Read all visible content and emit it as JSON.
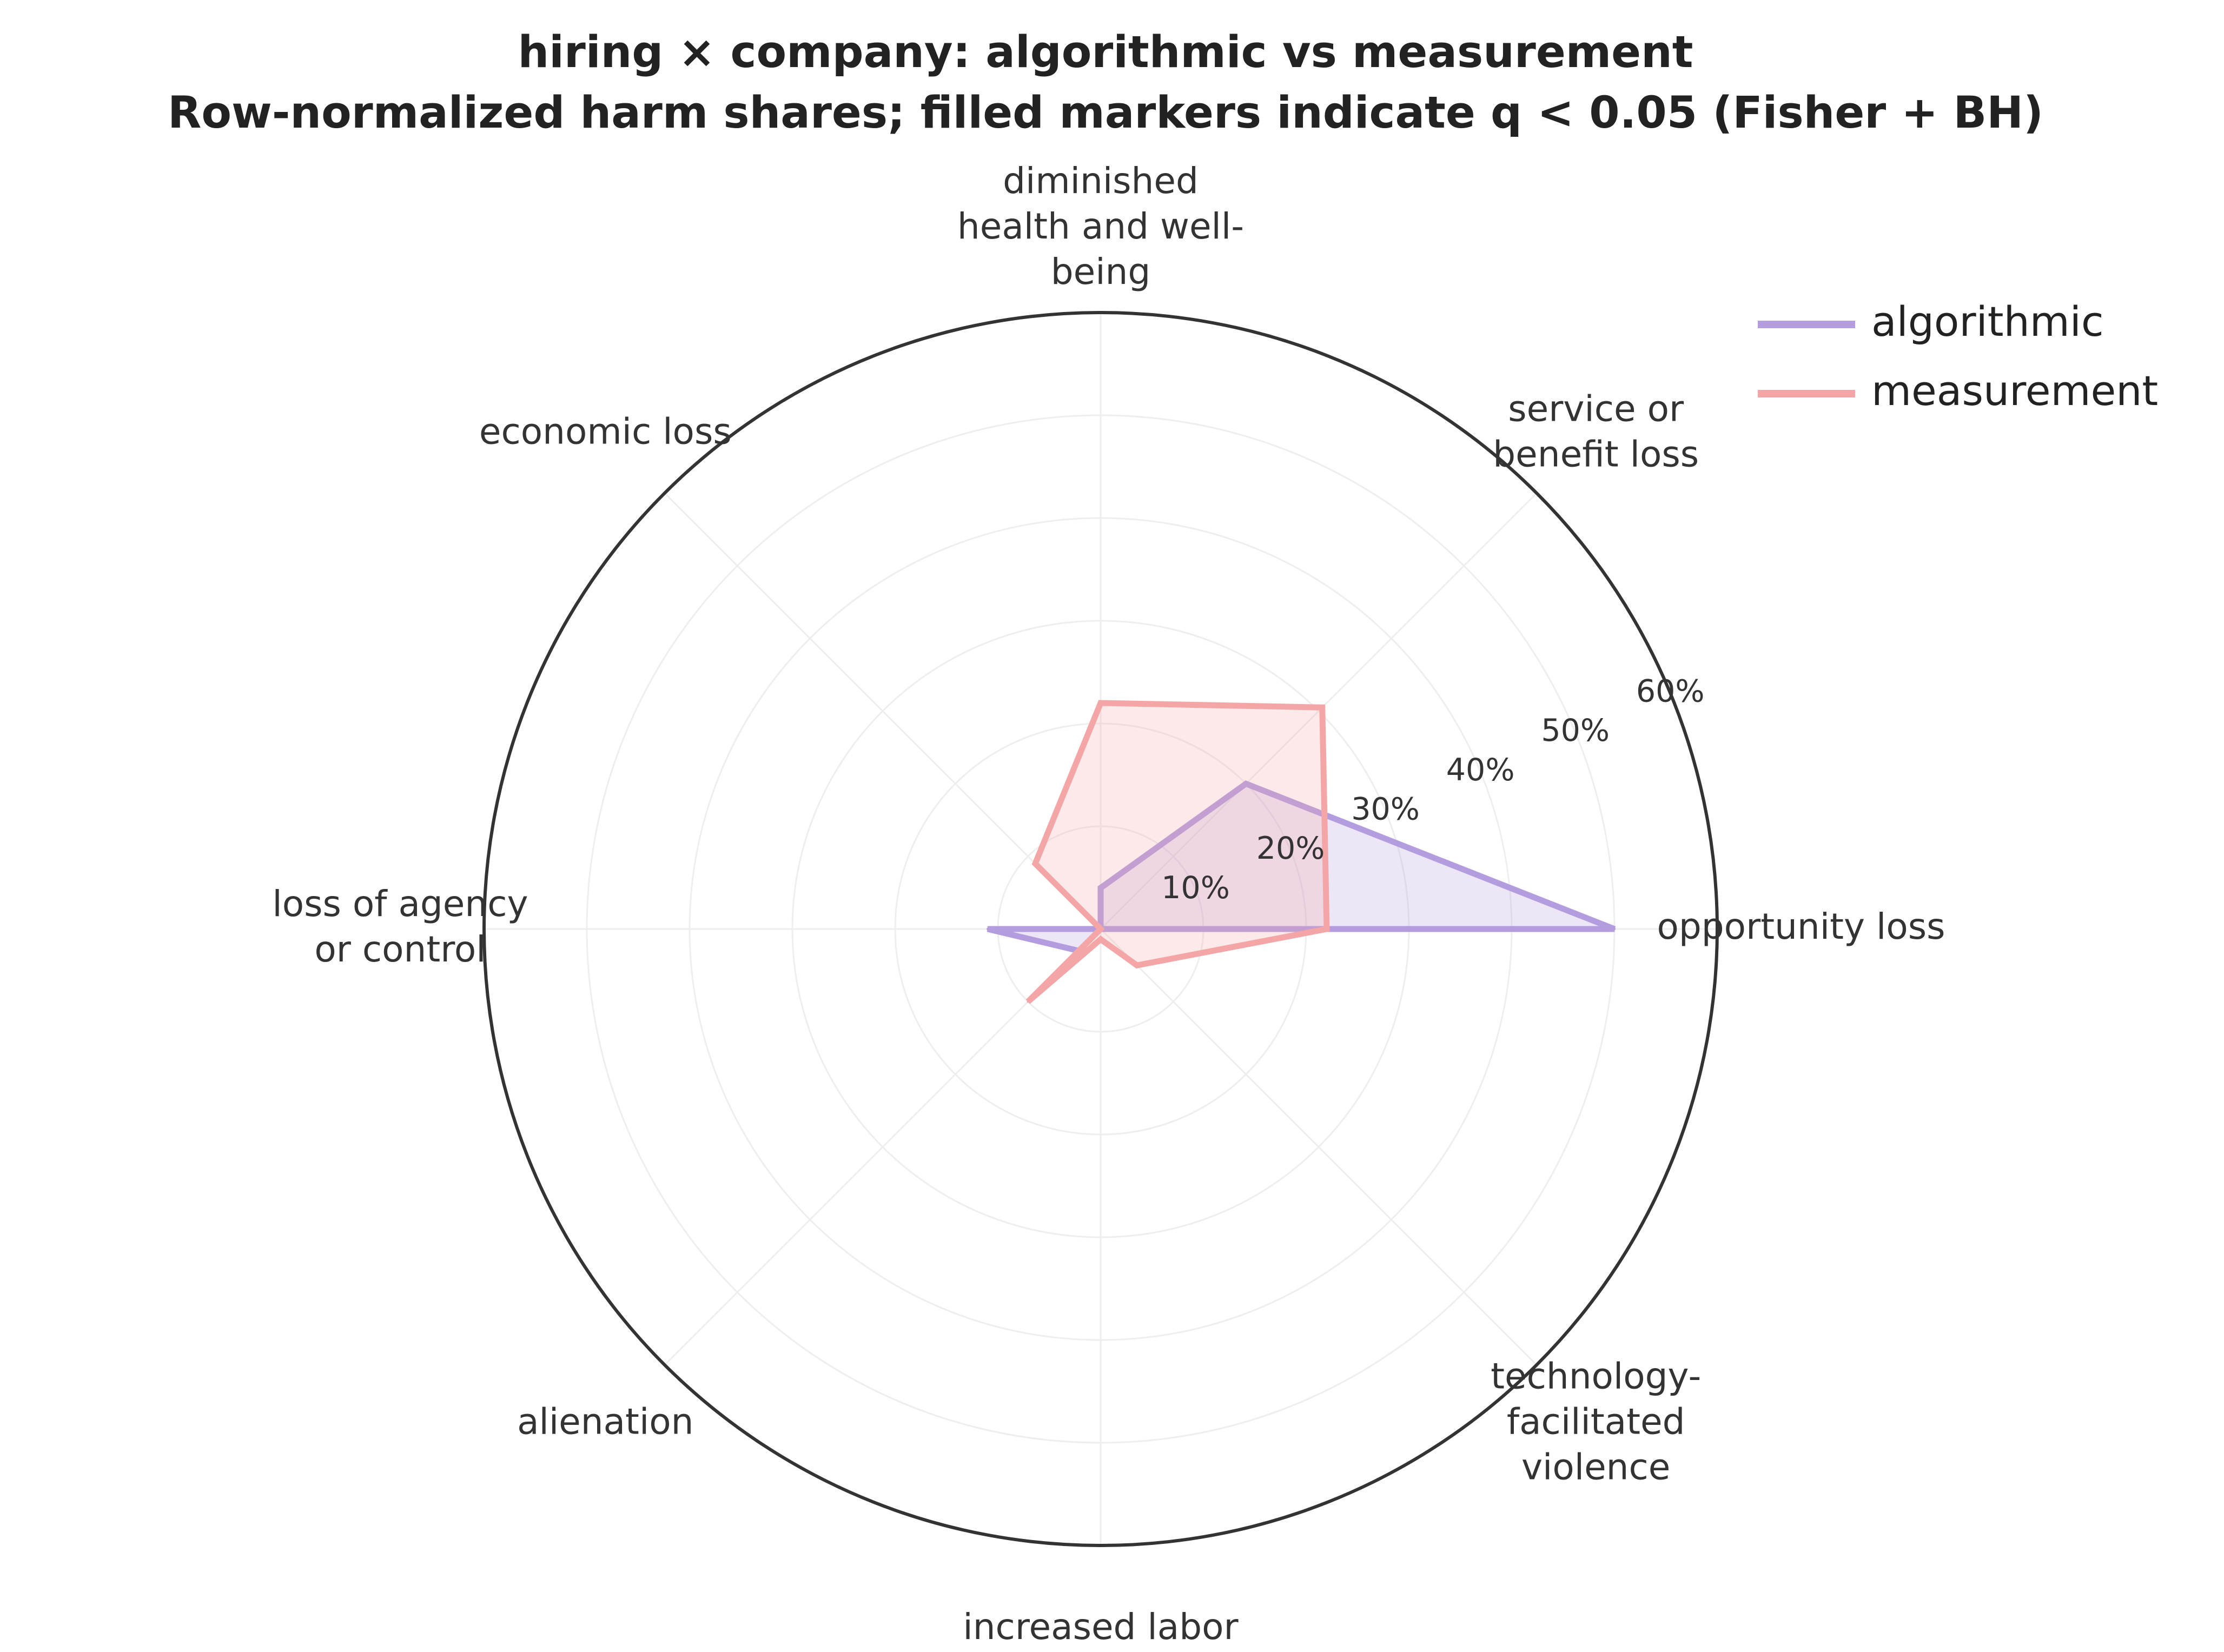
{
  "chart_data": {
    "type": "radar",
    "title": "hiring × company: algorithmic vs measurement",
    "subtitle": "Row-normalized harm shares; filled markers indicate q < 0.05 (Fisher + BH)",
    "categories": [
      "opportunity loss",
      "service or benefit loss",
      "diminished health and well-being",
      "economic loss",
      "loss of agency or control",
      "alienation",
      "increased labor",
      "technology-facilitated violence"
    ],
    "category_label_lines": [
      [
        "opportunity loss"
      ],
      [
        "service or",
        "benefit loss"
      ],
      [
        "diminished",
        "health and well-",
        "being"
      ],
      [
        "economic loss"
      ],
      [
        "loss of agency",
        "or control"
      ],
      [
        "alienation"
      ],
      [
        "increased labor"
      ],
      [
        "technology-",
        "facilitated",
        "violence"
      ]
    ],
    "series": [
      {
        "name": "algorithmic",
        "color": "#b39ddf",
        "values": [
          50,
          20,
          4,
          0,
          11,
          3,
          0,
          0
        ]
      },
      {
        "name": "measurement",
        "color": "#f4a6a6",
        "values": [
          22,
          30.5,
          22,
          9,
          0,
          10,
          1,
          5
        ]
      }
    ],
    "radial_ticks": [
      10,
      20,
      30,
      40,
      50,
      60
    ],
    "radial_tick_labels": [
      "10%",
      "20%",
      "30%",
      "40%",
      "50%",
      "60%"
    ],
    "rlim": [
      0,
      60
    ],
    "grid": true,
    "legend_position": "top-right"
  }
}
